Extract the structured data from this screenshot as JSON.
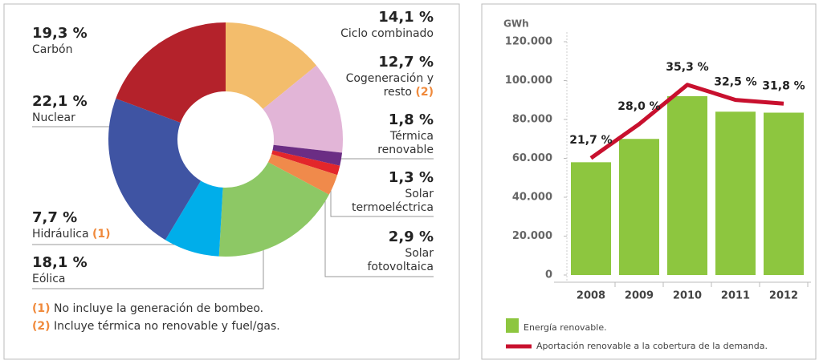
{
  "chart_data": [
    {
      "type": "donut",
      "categories": [
        "Ciclo combinado",
        "Cogeneración y resto",
        "Térmica renovable",
        "Solar termoeléctrica",
        "Solar fotovoltaica",
        "Eólica",
        "Hidráulica",
        "Nuclear",
        "Carbón"
      ],
      "category_notes": [
        null,
        "(2)",
        null,
        null,
        null,
        null,
        "(1)",
        null,
        null
      ],
      "values": [
        14.1,
        12.7,
        1.8,
        1.3,
        2.9,
        18.1,
        7.7,
        22.1,
        19.3
      ],
      "value_labels": [
        "14,1 %",
        "12,7 %",
        "1,8 %",
        "1,3 %",
        "2,9 %",
        "18,1 %",
        "7,7 %",
        "22,1 %",
        "19,3 %"
      ],
      "colors": [
        "#f3bd6c",
        "#e2b5d7",
        "#6b2d84",
        "#e3262b",
        "#f08a4b",
        "#8dc865",
        "#00aeea",
        "#3f54a3",
        "#b4222b"
      ],
      "footnotes": [
        {
          "marker": "(1)",
          "text": "No incluye la generación de bombeo."
        },
        {
          "marker": "(2)",
          "text": "Incluye térmica no renovable y fuel/gas."
        }
      ]
    },
    {
      "type": "bar-line",
      "y_label": "GWh",
      "categories": [
        "2008",
        "2009",
        "2010",
        "2011",
        "2012"
      ],
      "series": [
        {
          "name": "Energía renovable.",
          "color": "#8dc63f",
          "type": "bar",
          "values": [
            58000,
            70000,
            92000,
            84000,
            83500
          ]
        },
        {
          "name": "Aportación renovable a la cobertura de la demanda.",
          "color": "#c8102e",
          "type": "line",
          "axis": "y2",
          "values": [
            21.7,
            28.0,
            35.3,
            32.5,
            31.8
          ],
          "value_labels": [
            "21,7 %",
            "28,0 %",
            "35,3 %",
            "32,5 %",
            "31,8 %"
          ]
        }
      ],
      "ylim": [
        0,
        120000
      ],
      "yticks": [
        {
          "value": 0,
          "label": "0"
        },
        {
          "value": 20000,
          "label": "20.000"
        },
        {
          "value": 40000,
          "label": "40.000"
        },
        {
          "value": 60000,
          "label": "60.000"
        },
        {
          "value": 80000,
          "label": "80.000"
        },
        {
          "value": 100000,
          "label": "100.000"
        },
        {
          "value": 120000,
          "label": "120.000"
        }
      ],
      "y2lim": [
        0,
        43.3
      ]
    }
  ]
}
